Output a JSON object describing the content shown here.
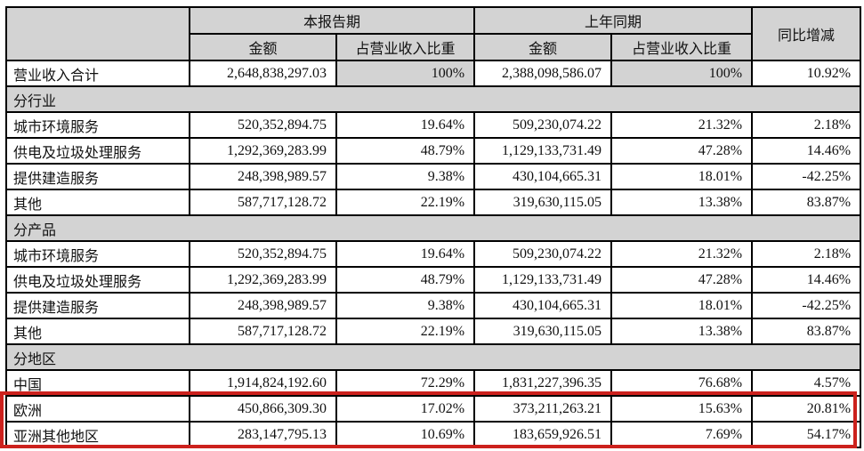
{
  "table": {
    "header": {
      "corner": "",
      "current_period": "本报告期",
      "prior_period": "上年同期",
      "yoy_change": "同比增减",
      "amount": "金额",
      "revenue_share": "占营业收入比重"
    },
    "rows": [
      {
        "type": "data",
        "label": "营业收入合计",
        "cells": [
          "2,648,838,297.03",
          "100%",
          "2,388,098,586.07",
          "100%",
          "10.92%"
        ],
        "shaded_cells": [
          1,
          3
        ]
      },
      {
        "type": "section",
        "label": "分行业"
      },
      {
        "type": "data",
        "label": "城市环境服务",
        "cells": [
          "520,352,894.75",
          "19.64%",
          "509,230,074.22",
          "21.32%",
          "2.18%"
        ]
      },
      {
        "type": "data",
        "label": "供电及垃圾处理服务",
        "cells": [
          "1,292,369,283.99",
          "48.79%",
          "1,129,133,731.49",
          "47.28%",
          "14.46%"
        ]
      },
      {
        "type": "data",
        "label": "提供建造服务",
        "cells": [
          "248,398,989.57",
          "9.38%",
          "430,104,665.31",
          "18.01%",
          "-42.25%"
        ]
      },
      {
        "type": "data",
        "label": "其他",
        "cells": [
          "587,717,128.72",
          "22.19%",
          "319,630,115.05",
          "13.38%",
          "83.87%"
        ]
      },
      {
        "type": "section",
        "label": "分产品"
      },
      {
        "type": "data",
        "label": "城市环境服务",
        "cells": [
          "520,352,894.75",
          "19.64%",
          "509,230,074.22",
          "21.32%",
          "2.18%"
        ]
      },
      {
        "type": "data",
        "label": "供电及垃圾处理服务",
        "cells": [
          "1,292,369,283.99",
          "48.79%",
          "1,129,133,731.49",
          "47.28%",
          "14.46%"
        ]
      },
      {
        "type": "data",
        "label": "提供建造服务",
        "cells": [
          "248,398,989.57",
          "9.38%",
          "430,104,665.31",
          "18.01%",
          "-42.25%"
        ]
      },
      {
        "type": "data",
        "label": "其他",
        "cells": [
          "587,717,128.72",
          "22.19%",
          "319,630,115.05",
          "13.38%",
          "83.87%"
        ]
      },
      {
        "type": "section",
        "label": "分地区"
      },
      {
        "type": "data",
        "label": "中国",
        "cells": [
          "1,914,824,192.60",
          "72.29%",
          "1,831,227,396.35",
          "76.68%",
          "4.57%"
        ]
      },
      {
        "type": "data",
        "label": "欧洲",
        "cells": [
          "450,866,309.30",
          "17.02%",
          "373,211,263.21",
          "15.63%",
          "20.81%"
        ],
        "highlighted": true
      },
      {
        "type": "data",
        "label": "亚洲其他地区",
        "cells": [
          "283,147,795.13",
          "10.69%",
          "183,659,926.51",
          "7.69%",
          "54.17%"
        ],
        "highlighted": true
      }
    ]
  },
  "annotation": {
    "highlighted_row_labels": [
      "欧洲",
      "亚洲其他地区"
    ],
    "highlight_color": "#cc211d"
  },
  "colors": {
    "header_bg": "#d3d3d3",
    "section_bg": "#d3d3d3",
    "border": "#000000"
  }
}
